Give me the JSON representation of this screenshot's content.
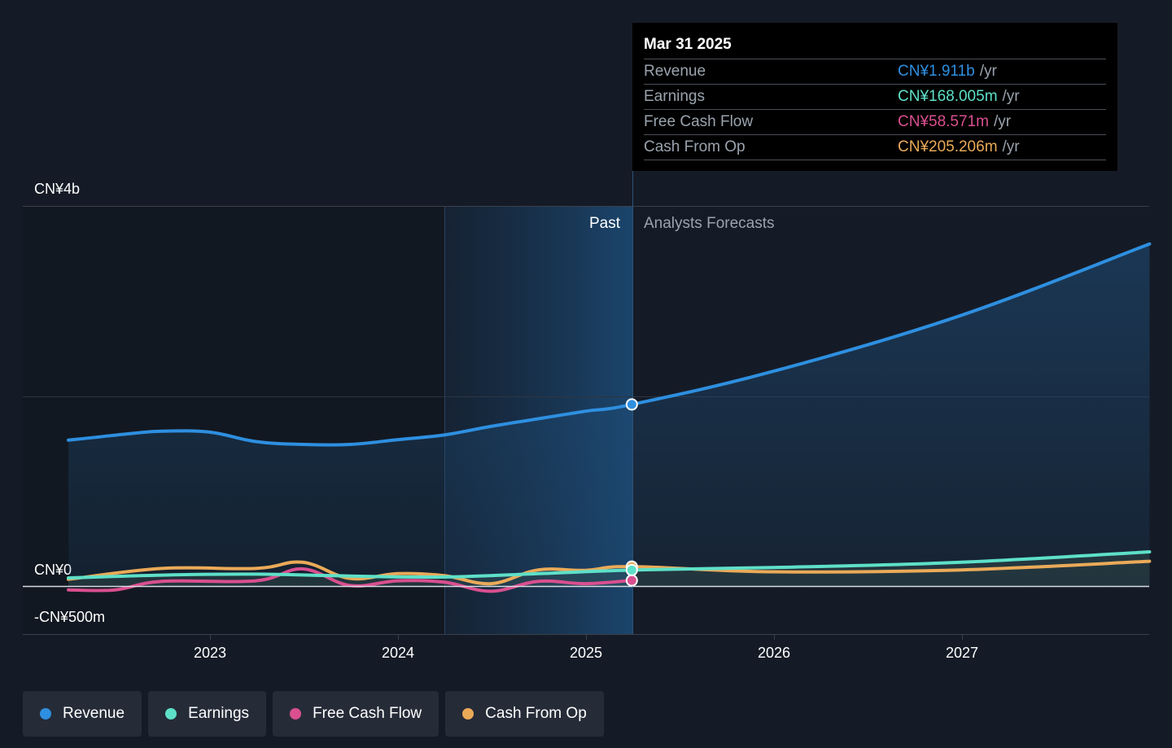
{
  "chart_data": {
    "type": "line",
    "x_axis": {
      "ticks": [
        "2023",
        "2024",
        "2025",
        "2026",
        "2027"
      ]
    },
    "y_axis": {
      "ticks": [
        "CN¥4b",
        "CN¥0",
        "-CN¥500m"
      ],
      "ylim": [
        -500,
        4000
      ],
      "unit": "CN¥m"
    },
    "regions": {
      "past_label": "Past",
      "forecast_label": "Analysts Forecasts",
      "divider_date": "2025-03-31"
    },
    "series": [
      {
        "name": "Revenue",
        "color": "#2e8fe0",
        "fill": true,
        "points": [
          [
            "2022-04-01",
            1535
          ],
          [
            "2022-06-01",
            1570
          ],
          [
            "2022-08-01",
            1605
          ],
          [
            "2022-09-30",
            1630
          ],
          [
            "2022-12-31",
            1620
          ],
          [
            "2023-03-31",
            1520
          ],
          [
            "2023-06-30",
            1490
          ],
          [
            "2023-09-30",
            1490
          ],
          [
            "2023-12-31",
            1540
          ],
          [
            "2024-03-31",
            1590
          ],
          [
            "2024-06-30",
            1680
          ],
          [
            "2024-09-30",
            1760
          ],
          [
            "2024-12-31",
            1840
          ],
          [
            "2025-03-31",
            1911
          ],
          [
            "2025-12-31",
            2260
          ],
          [
            "2026-12-31",
            2850
          ],
          [
            "2027-12-31",
            3600
          ]
        ]
      },
      {
        "name": "Earnings",
        "color": "#5ee0c8",
        "points": [
          [
            "2022-04-01",
            85
          ],
          [
            "2022-09-30",
            115
          ],
          [
            "2023-03-31",
            125
          ],
          [
            "2023-09-30",
            105
          ],
          [
            "2024-03-31",
            95
          ],
          [
            "2024-09-30",
            130
          ],
          [
            "2025-03-31",
            168
          ],
          [
            "2025-12-31",
            195
          ],
          [
            "2026-12-31",
            250
          ],
          [
            "2027-12-31",
            360
          ]
        ]
      },
      {
        "name": "Free Cash Flow",
        "color": "#d94f8f",
        "points": [
          [
            "2022-04-01",
            -40
          ],
          [
            "2022-07-01",
            -40
          ],
          [
            "2022-09-30",
            50
          ],
          [
            "2023-03-31",
            55
          ],
          [
            "2023-06-30",
            180
          ],
          [
            "2023-09-30",
            5
          ],
          [
            "2023-12-31",
            55
          ],
          [
            "2024-03-31",
            40
          ],
          [
            "2024-06-30",
            -55
          ],
          [
            "2024-09-30",
            50
          ],
          [
            "2024-12-31",
            25
          ],
          [
            "2025-03-31",
            59
          ]
        ]
      },
      {
        "name": "Cash From Op",
        "color": "#eaaa58",
        "points": [
          [
            "2022-04-01",
            70
          ],
          [
            "2022-09-30",
            185
          ],
          [
            "2023-03-31",
            185
          ],
          [
            "2023-06-30",
            250
          ],
          [
            "2023-09-30",
            80
          ],
          [
            "2023-12-31",
            130
          ],
          [
            "2024-03-31",
            110
          ],
          [
            "2024-06-30",
            25
          ],
          [
            "2024-09-30",
            170
          ],
          [
            "2024-12-31",
            165
          ],
          [
            "2025-03-31",
            205
          ],
          [
            "2025-12-31",
            150
          ],
          [
            "2026-12-31",
            170
          ],
          [
            "2027-12-31",
            260
          ]
        ]
      }
    ]
  },
  "tooltip": {
    "date": "Mar 31 2025",
    "rows": [
      {
        "name": "Revenue",
        "value": "CN¥1.911b",
        "unit": "/yr",
        "color": "#2e8fe0"
      },
      {
        "name": "Earnings",
        "value": "CN¥168.005m",
        "unit": "/yr",
        "color": "#5ee0c8"
      },
      {
        "name": "Free Cash Flow",
        "value": "CN¥58.571m",
        "unit": "/yr",
        "color": "#d94f8f"
      },
      {
        "name": "Cash From Op",
        "value": "CN¥205.206m",
        "unit": "/yr",
        "color": "#eaaa58"
      }
    ]
  },
  "legend": [
    {
      "label": "Revenue",
      "color": "#2e8fe0"
    },
    {
      "label": "Earnings",
      "color": "#5ee0c8"
    },
    {
      "label": "Free Cash Flow",
      "color": "#d94f8f"
    },
    {
      "label": "Cash From Op",
      "color": "#eaaa58"
    }
  ]
}
